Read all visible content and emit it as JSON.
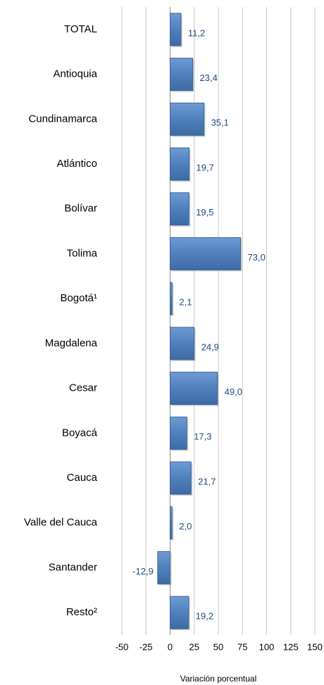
{
  "chart_data": {
    "type": "barh",
    "categories": [
      "TOTAL",
      "Antioquia",
      "Cundinamarca",
      "Atlántico",
      "Bolívar",
      "Tolima",
      "Bogotá¹",
      "Magdalena",
      "Cesar",
      "Boyacá",
      "Cauca",
      "Valle del Cauca",
      "Santander",
      "Resto²"
    ],
    "values": [
      11.2,
      23.4,
      35.1,
      19.7,
      19.5,
      73.0,
      2.1,
      24.9,
      49.0,
      17.3,
      21.7,
      2.0,
      -12.9,
      19.2
    ],
    "value_labels": [
      "11,2",
      "23,4",
      "35,1",
      "19,7",
      "19,5",
      "73,0",
      "2,1",
      "24,9",
      "49,0",
      "17,3",
      "21,7",
      "2,0",
      "-12,9",
      "19,2"
    ],
    "color": "#4f81bd",
    "xlim": [
      -50,
      150
    ],
    "xticks": [
      -50,
      -25,
      0,
      25,
      50,
      75,
      100,
      125,
      150
    ],
    "xlabel": "Variación porcentual",
    "grid": true
  }
}
